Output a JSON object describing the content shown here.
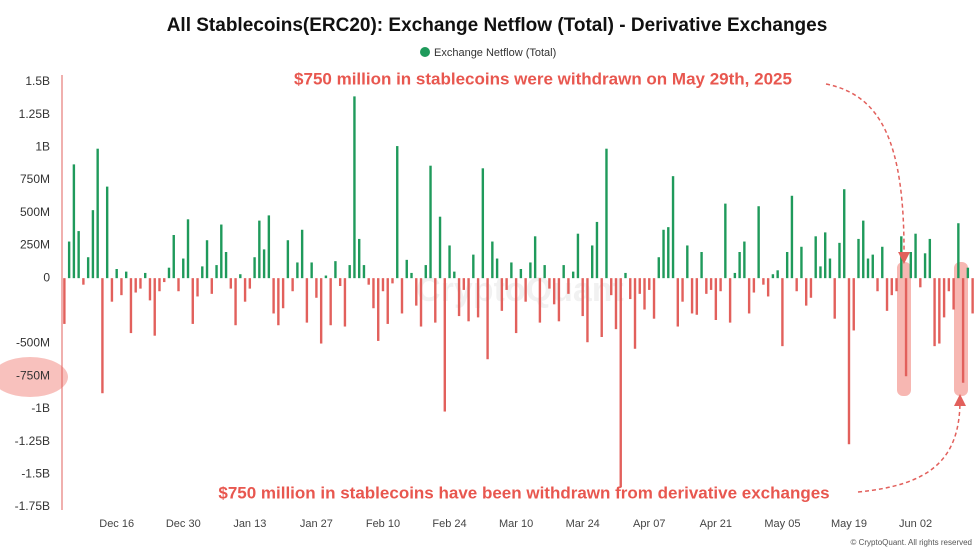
{
  "chart_data": {
    "type": "bar",
    "title": "All Stablecoins(ERC20): Exchange Netflow (Total) - Derivative Exchanges",
    "annotations": [
      "$750 million in stablecoins were withdrawn on May 29th, 2025",
      "$750 million in stablecoins have been withdrawn from derivative exchanges"
    ],
    "watermark": "CryptoQuant",
    "footer": "© CryptoQuant. All rights reserved",
    "legend": "top",
    "positive_color": "#1f9a5b",
    "negative_color": "#e2605c",
    "ylim": [
      -1750,
      1500
    ],
    "yticks": [
      {
        "value": 1500,
        "label": "1.5B"
      },
      {
        "value": 1250,
        "label": "1.25B"
      },
      {
        "value": 1000,
        "label": "1B"
      },
      {
        "value": 750,
        "label": "750M"
      },
      {
        "value": 500,
        "label": "500M"
      },
      {
        "value": 250,
        "label": "250M"
      },
      0,
      {
        "value": -500,
        "label": "-500M"
      },
      {
        "value": -750,
        "label": "-750M"
      },
      {
        "value": -1000,
        "label": "-1B"
      },
      {
        "value": -1250,
        "label": "-1.25B"
      },
      {
        "value": -1500,
        "label": "-1.5B"
      },
      {
        "value": -1750,
        "label": "-1.75B"
      }
    ],
    "categories": [
      null,
      null,
      null,
      null,
      null,
      null,
      null,
      null,
      null,
      null,
      null,
      "Dec 16",
      null,
      null,
      null,
      null,
      null,
      null,
      null,
      null,
      null,
      null,
      null,
      null,
      null,
      "Dec 30",
      null,
      null,
      null,
      null,
      null,
      null,
      null,
      null,
      null,
      null,
      null,
      null,
      null,
      "Jan 13",
      null,
      null,
      null,
      null,
      null,
      null,
      null,
      null,
      null,
      null,
      null,
      null,
      null,
      "Jan 27",
      null,
      null,
      null,
      null,
      null,
      null,
      null,
      null,
      null,
      null,
      null,
      null,
      null,
      "Feb 10",
      null,
      null,
      null,
      null,
      null,
      null,
      null,
      null,
      null,
      null,
      null,
      null,
      null,
      "Feb 24",
      null,
      null,
      null,
      null,
      null,
      null,
      null,
      null,
      null,
      null,
      null,
      null,
      null,
      "Mar 10",
      null,
      null,
      null,
      null,
      null,
      null,
      null,
      null,
      null,
      null,
      null,
      null,
      null,
      "Mar 24",
      null,
      null,
      null,
      null,
      null,
      null,
      null,
      null,
      null,
      null,
      null,
      null,
      null,
      "Apr 07",
      null,
      null,
      null,
      null,
      null,
      null,
      null,
      null,
      null,
      null,
      null,
      null,
      null,
      "Apr 21",
      null,
      null,
      null,
      null,
      null,
      null,
      null,
      null,
      null,
      null,
      null,
      null,
      null,
      "May 05",
      null,
      null,
      null,
      null,
      null,
      null,
      null,
      null,
      null,
      null,
      null,
      null,
      null,
      "May 19",
      null,
      null,
      null,
      null,
      null,
      null,
      null,
      null,
      null,
      null,
      null,
      null,
      null,
      "Jun 02",
      null,
      null,
      null,
      null,
      null,
      null,
      null,
      null,
      null,
      null,
      null,
      null
    ],
    "series": [
      {
        "name": "Exchange Netflow (Total)",
        "color": "#1f9a5b",
        "values": [
          -350,
          280,
          870,
          360,
          -50,
          160,
          520,
          990,
          -880,
          700,
          -180,
          70,
          -130,
          50,
          -420,
          -110,
          -80,
          40,
          -170,
          -440,
          -100,
          -30,
          80,
          330,
          -100,
          150,
          450,
          -350,
          -140,
          90,
          290,
          -120,
          100,
          410,
          200,
          -80,
          -360,
          30,
          -180,
          -80,
          160,
          440,
          220,
          480,
          -270,
          -360,
          -230,
          290,
          -100,
          120,
          370,
          -340,
          120,
          -150,
          -500,
          20,
          -360,
          130,
          -60,
          -370,
          100,
          1390,
          300,
          100,
          -50,
          -230,
          -480,
          -100,
          -350,
          -40,
          1010,
          -270,
          140,
          40,
          -210,
          -370,
          100,
          860,
          -340,
          470,
          -1020,
          250,
          50,
          -290,
          -90,
          -330,
          180,
          -300,
          840,
          -620,
          280,
          150,
          -250,
          -90,
          120,
          -420,
          70,
          -180,
          120,
          320,
          -340,
          100,
          -80,
          -200,
          -330,
          100,
          -120,
          50,
          340,
          -290,
          -490,
          250,
          430,
          -450,
          990,
          -130,
          -390,
          -1600,
          40,
          -160,
          -540,
          -120,
          -240,
          -90,
          -310,
          160,
          370,
          390,
          780,
          -370,
          -180,
          250,
          -270,
          -280,
          200,
          -120,
          -90,
          -320,
          -100,
          570,
          -340,
          40,
          200,
          280,
          -270,
          -110,
          550,
          -50,
          -140,
          30,
          60,
          -520,
          200,
          630,
          -100,
          240,
          -210,
          -150,
          320,
          90,
          350,
          150,
          -310,
          270,
          680,
          -1270,
          -400,
          300,
          440,
          150,
          180,
          -100,
          240,
          -250,
          -130,
          -100,
          320,
          -750,
          200,
          340,
          -70,
          190,
          300,
          -520,
          -500,
          -300,
          -100,
          -240,
          420,
          -800,
          80,
          -270
        ]
      }
    ]
  }
}
